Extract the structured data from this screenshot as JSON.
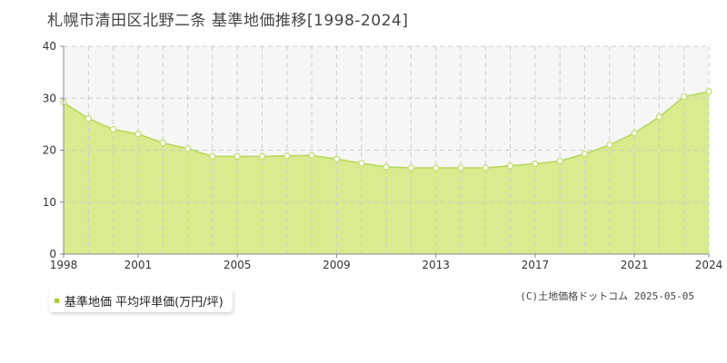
{
  "colors": {
    "area_fill": "#d8eb8e",
    "line": "#b6d65a",
    "marker_fill": "#ffffff",
    "marker_stroke": "#c4df72",
    "grid": "#cccccc",
    "axis": "#888888",
    "legend_marker": "#a4cf30",
    "plot_background_upper": "#f6f6f6"
  },
  "legend": {
    "label": "基準地価 平均坪単価(万円/坪)"
  },
  "copyright": "(C)土地価格ドットコム 2025-05-05",
  "chart_data": {
    "type": "area",
    "title": "札幌市清田区北野二条 基準地価推移[1998-2024]",
    "xlabel": "",
    "ylabel": "",
    "xlim": [
      1998,
      2024
    ],
    "ylim": [
      0,
      40
    ],
    "yticks": [
      0,
      10,
      20,
      30,
      40
    ],
    "xticks": [
      1998,
      2001,
      2005,
      2009,
      2013,
      2017,
      2021,
      2024
    ],
    "grid": true,
    "legend_position": "bottom-left",
    "x": [
      1998,
      1999,
      2000,
      2001,
      2002,
      2003,
      2004,
      2005,
      2006,
      2007,
      2008,
      2009,
      2010,
      2011,
      2012,
      2013,
      2014,
      2015,
      2016,
      2017,
      2018,
      2019,
      2020,
      2021,
      2022,
      2023,
      2024
    ],
    "series": [
      {
        "name": "基準地価 平均坪単価(万円/坪)",
        "values": [
          29.2,
          26.1,
          24.0,
          23.1,
          21.4,
          20.3,
          18.8,
          18.8,
          18.8,
          18.9,
          19.0,
          18.3,
          17.5,
          16.8,
          16.6,
          16.6,
          16.6,
          16.6,
          17.0,
          17.4,
          17.9,
          19.3,
          21.0,
          23.3,
          26.4,
          30.3,
          31.3
        ]
      }
    ]
  }
}
